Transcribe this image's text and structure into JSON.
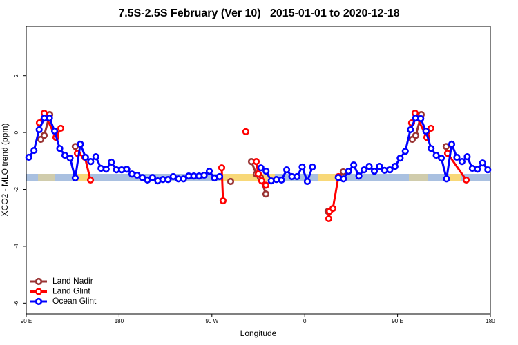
{
  "chart_data": {
    "type": "line",
    "title": "7.5S-2.5S February (Ver 10)   2015-01-01 to 2020-12-18",
    "xlabel": "Longitude",
    "ylabel": "XCO2 - MLO trend (ppm)",
    "xlim": [
      90,
      540
    ],
    "ylim": [
      -6.38,
      3.74
    ],
    "xticks": [
      {
        "value": 90,
        "label": "90 E"
      },
      180,
      {
        "value": 270,
        "label": "90 W"
      },
      {
        "value": 360,
        "label": "0"
      },
      {
        "value": 450,
        "label": "90 E"
      },
      {
        "value": 540,
        "label": "180"
      }
    ],
    "yticks": [
      -6,
      -4,
      -2,
      0,
      2
    ],
    "legend": "bottom-left",
    "series": [
      {
        "name": "Land Nadir",
        "color": "#993333",
        "x": [
          104.1,
          107.4,
          112.8,
          125,
          137.5,
          200,
          288.2,
          300,
          308.3,
          313,
          317,
          322.3,
          350,
          382.6,
          390,
          397.3,
          430,
          464.3,
          467.7,
          473,
          485,
          497.1
        ],
        "values": [
          -0.24,
          -0.1,
          0.63,
          null,
          -0.49,
          null,
          -1.72,
          null,
          -1.02,
          -1.46,
          -1.58,
          -2.16,
          null,
          -2.77,
          null,
          -1.38,
          null,
          -0.24,
          -0.1,
          0.63,
          null,
          -0.49
        ]
      },
      {
        "name": "Land Glint",
        "color": "#ff0000",
        "x": [
          102.7,
          107.4,
          118.8,
          123.5,
          130,
          139.6,
          146.9,
          152.3,
          200,
          279.5,
          280.8,
          290,
          302.9,
          308,
          313,
          315,
          318.3,
          322.3,
          350,
          383.3,
          384,
          387.3,
          392.7,
          430,
          463.6,
          467,
          478.4,
          482.4,
          490,
          498.5,
          516.6
        ],
        "values": [
          0.34,
          0.68,
          -0.17,
          0.15,
          null,
          -0.73,
          -0.87,
          -1.67,
          null,
          -1.24,
          -2.4,
          null,
          0.03,
          null,
          -1.02,
          -1.46,
          -1.7,
          -1.85,
          null,
          -3.03,
          -2.77,
          -2.67,
          -1.55,
          null,
          0.34,
          0.68,
          -0.17,
          0.15,
          null,
          -0.73,
          -1.67
        ]
      },
      {
        "name": "Ocean Glint",
        "color": "#0000ff",
        "x": [
          92.5,
          97.5,
          102.5,
          107.5,
          112.5,
          117.5,
          122.5,
          127.5,
          132.5,
          137.5,
          142.5,
          147.5,
          152.5,
          157.5,
          162.5,
          167.5,
          172.5,
          177.5,
          182.5,
          187.5,
          192.5,
          197.5,
          202.5,
          207.5,
          212.5,
          217.5,
          222.5,
          227.5,
          232.5,
          237.5,
          242.5,
          247.5,
          252.5,
          257.5,
          262.5,
          267.5,
          272.5,
          277.5,
          282.5,
          317.5,
          322.5,
          327.5,
          332.5,
          337.5,
          342.5,
          347.5,
          352.5,
          357.5,
          362.5,
          367.5,
          372.5,
          392.5,
          397.5,
          402.5,
          407.5,
          412.5,
          417.5,
          422.5,
          427.5,
          432.5,
          437.5,
          442.5,
          447.5,
          452.5,
          457.5,
          462.5,
          467.5,
          472.5,
          477.5,
          482.5,
          487.5,
          492.5,
          497.5,
          502.5,
          507.5,
          512.5,
          517.5,
          522.5,
          527.5,
          532.5,
          537.5
        ],
        "values": [
          -0.87,
          -0.63,
          0.1,
          0.51,
          0.51,
          0.05,
          -0.56,
          -0.8,
          -0.9,
          -1.6,
          -0.41,
          -0.87,
          -1.02,
          -0.85,
          -1.26,
          -1.29,
          -1.04,
          -1.31,
          -1.31,
          -1.29,
          -1.46,
          -1.5,
          -1.58,
          -1.67,
          -1.58,
          -1.7,
          -1.65,
          -1.65,
          -1.55,
          -1.63,
          -1.63,
          -1.53,
          -1.53,
          -1.53,
          -1.5,
          -1.36,
          -1.6,
          -1.55,
          null,
          -1.24,
          -1.36,
          -1.7,
          -1.65,
          -1.67,
          -1.31,
          -1.55,
          -1.55,
          -1.21,
          -1.72,
          -1.21,
          null,
          -1.58,
          -1.63,
          -1.36,
          -1.14,
          -1.53,
          -1.31,
          -1.19,
          -1.36,
          -1.19,
          -1.33,
          -1.31,
          -1.19,
          -0.9,
          -0.66,
          0.1,
          0.51,
          0.49,
          0.05,
          -0.56,
          -0.8,
          -0.9,
          -1.63,
          -0.41,
          -0.87,
          -1.02,
          -0.85,
          -1.26,
          -1.29,
          -1.07,
          -1.31
        ]
      }
    ]
  }
}
